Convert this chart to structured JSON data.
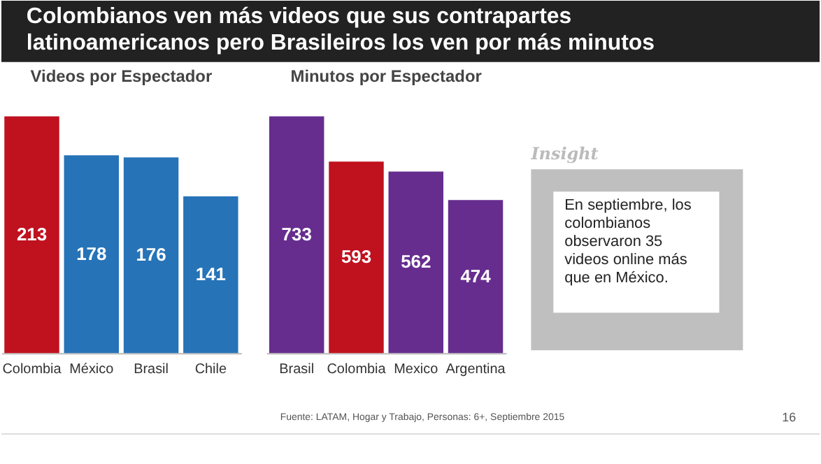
{
  "chart_data": [
    {
      "type": "bar",
      "title": "Colombianos ven más videos que sus contrapartes latinoamericanos pero Brasileiros los ven por más minutos",
      "subtitle": "Videos por Espectador",
      "categories": [
        "Colombia",
        "México",
        "Brasil",
        "Chile"
      ],
      "values": [
        213,
        178,
        176,
        141
      ],
      "colors": [
        "#c0111f",
        "#2673b8",
        "#2673b8",
        "#2673b8"
      ],
      "data_labels": true,
      "annotations": [
        "Fuente: LATAM, Hogar y Trabajo, Personas: 6+, Septiembre 2015",
        "16"
      ]
    },
    {
      "type": "bar",
      "subtitle": "Minutos por Espectador",
      "categories": [
        "Brasil",
        "Colombia",
        "Mexico",
        "Argentina"
      ],
      "values": [
        733,
        593,
        562,
        474
      ],
      "colors": [
        "#662d8f",
        "#c0111f",
        "#662d8f",
        "#662d8f"
      ],
      "data_labels": true
    },
    {
      "type": "other",
      "title": "Insight",
      "annotations": [
        "En septiembre, los colombianos observaron 35 videos online más que en México."
      ]
    }
  ]
}
